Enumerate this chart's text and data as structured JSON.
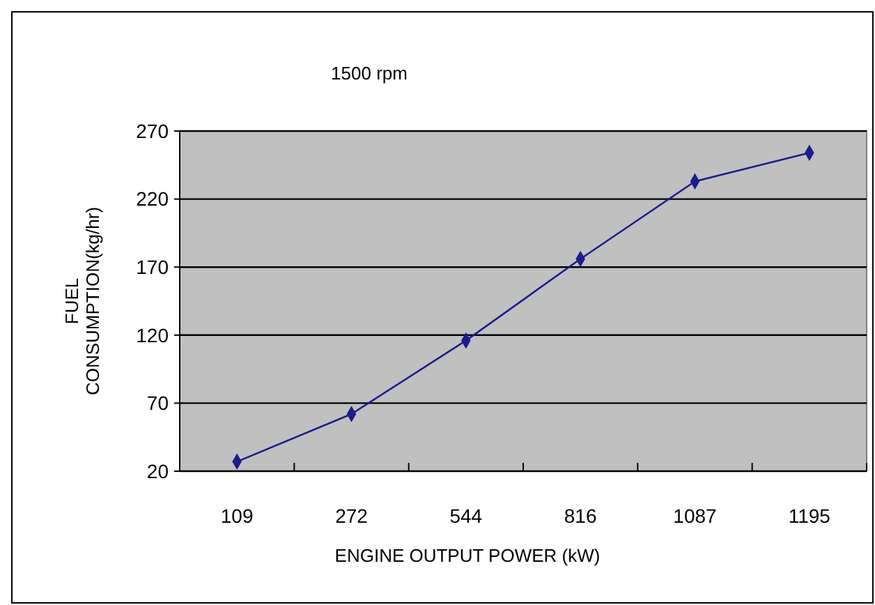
{
  "chart_data": {
    "type": "line",
    "title": "1500 rpm",
    "xlabel": "ENGINE OUTPUT POWER (kW)",
    "ylabel": "FUEL CONSUMPTION(kg/hr)",
    "categories": [
      "109",
      "272",
      "544",
      "816",
      "1087",
      "1195"
    ],
    "series": [
      {
        "color": "#1c1c8c",
        "values": [
          27,
          62,
          116,
          176,
          233,
          254
        ]
      }
    ],
    "ylim": [
      20,
      270
    ],
    "yticks": [
      20,
      70,
      120,
      170,
      220,
      270
    ],
    "grid": "y",
    "marker": "diamond",
    "line_style": "solid"
  }
}
